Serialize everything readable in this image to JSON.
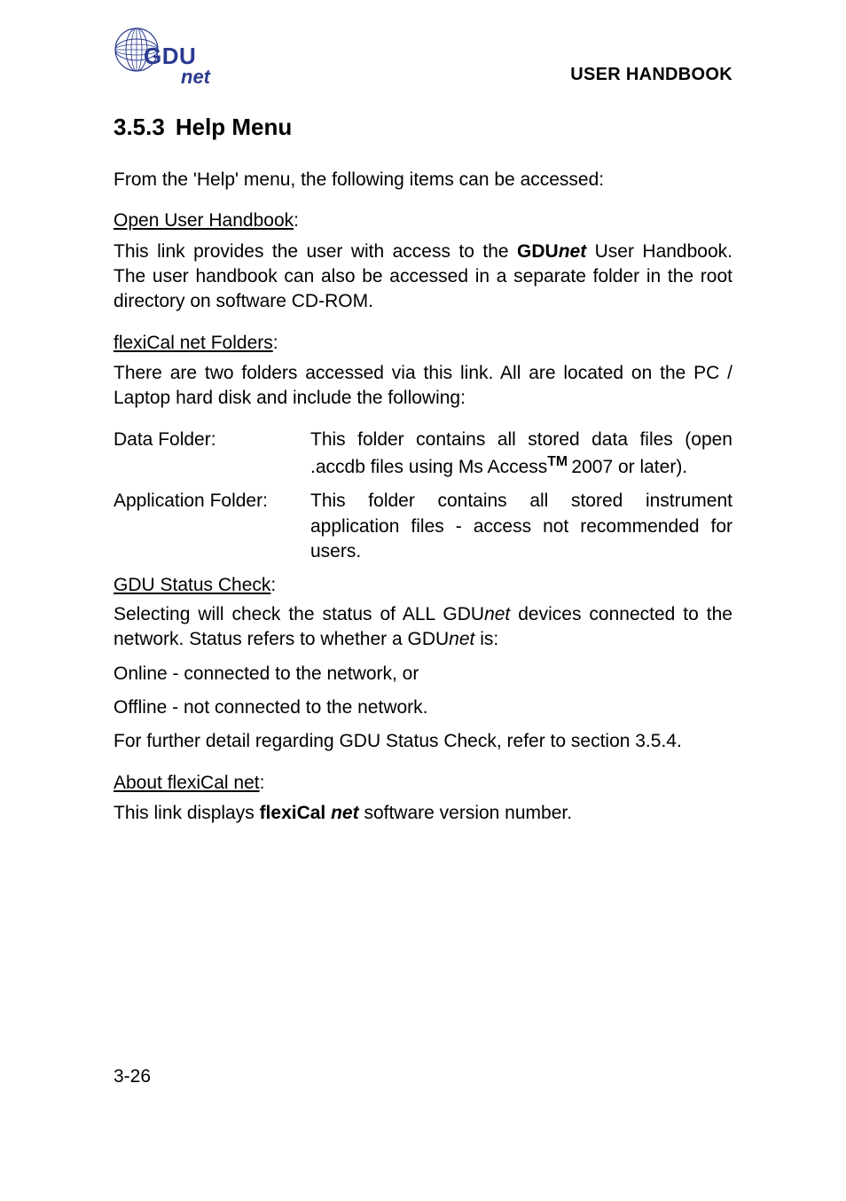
{
  "header": {
    "title": "USER HANDBOOK",
    "logo": {
      "text_main": "GDU",
      "text_sub": "net",
      "color": "#2b3a8f"
    }
  },
  "section": {
    "number": "3.5.3",
    "title": "Help Menu"
  },
  "intro": "From the 'Help' menu, the following items can be accessed:",
  "open_handbook": {
    "heading": "Open User Handbook",
    "colon": ":",
    "p1a": "This link provides the user with access to the ",
    "p1b": "GDU",
    "p1c": "net",
    "p1d": " User Handbook. The user handbook can also be accessed in a separate folder in the root directory on software CD-ROM."
  },
  "flexical_folders": {
    "heading": "flexiCal net Folders",
    "colon": ":",
    "intro": "There are two folders accessed via this link. All are located on the PC / Laptop hard disk and include the following:",
    "rows": [
      {
        "label": "Data Folder:",
        "desc_a": "This folder contains all stored data files (open .accdb files using Ms Access",
        "desc_tm": "TM ",
        "desc_b": "2007 or later)."
      },
      {
        "label": "Application Folder:",
        "desc_a": "This folder contains all stored instrument application files - access not recommended for users.",
        "desc_tm": "",
        "desc_b": ""
      }
    ]
  },
  "gdu_status": {
    "heading": "GDU Status Check",
    "colon": ":",
    "p1a": "Selecting will check the status of ALL GDU",
    "p1b": "net",
    "p1c": " devices connected to the network. Status refers to whether a GDU",
    "p1d": "net",
    "p1e": " is:",
    "online": "Online - connected to the network, or",
    "offline": "Offline - not connected to the network.",
    "refer": "For further detail regarding GDU Status Check, refer to section 3.5.4."
  },
  "about": {
    "heading": "About flexiCal net",
    "colon": ":",
    "p1a": "This link displays ",
    "p1b": "flexiCal",
    "p1c": " ",
    "p1d": "net",
    "p1e": " software version number."
  },
  "page_number": "3-26"
}
